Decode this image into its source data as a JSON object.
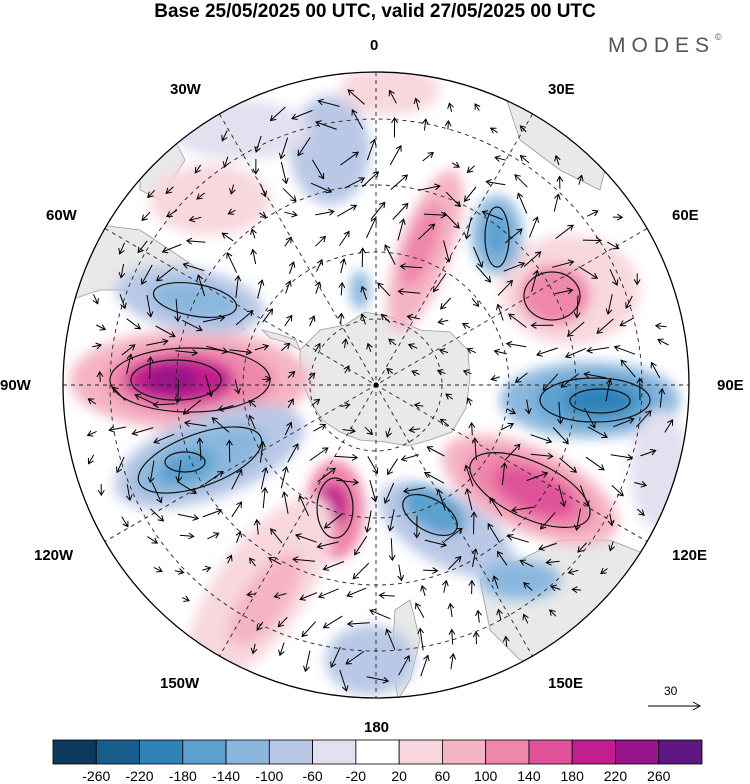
{
  "title": "Base 25/05/2025 00 UTC, valid 27/05/2025 00 UTC",
  "logo": "MODES",
  "logo_mark": "©",
  "longitude_labels": {
    "top": "0",
    "ne30": "30E",
    "nw30": "30W",
    "ne60": "60E",
    "nw60": "60W",
    "east": "90E",
    "west": "90W",
    "se120": "120E",
    "sw120": "120W",
    "se150": "150E",
    "sw150": "150W",
    "bottom": "180"
  },
  "reference_vector": {
    "value": "30"
  },
  "colorbar": {
    "colors": [
      "#0d3a5c",
      "#175e8c",
      "#2f82b8",
      "#5aa1cf",
      "#8bb7de",
      "#b9c8e6",
      "#e4e0f0",
      "#ffffff",
      "#f8d7de",
      "#f5b4c4",
      "#ef86ab",
      "#e0529a",
      "#c21e8f",
      "#96138a",
      "#5e1681"
    ],
    "ticks": [
      "-260",
      "-220",
      "-180",
      "-140",
      "-100",
      "-60",
      "-20",
      "20",
      "60",
      "100",
      "140",
      "180",
      "220",
      "260"
    ]
  },
  "map_features": {
    "projection": "south polar stereographic",
    "anomalies": [
      {
        "sign": "positive",
        "location": "90W"
      },
      {
        "sign": "positive",
        "location": "100E-130E"
      },
      {
        "sign": "positive",
        "location": "60E"
      },
      {
        "sign": "positive",
        "location": "15E"
      },
      {
        "sign": "positive",
        "location": "160W"
      },
      {
        "sign": "positive",
        "location": "140W-180"
      },
      {
        "sign": "negative",
        "location": "90E"
      },
      {
        "sign": "negative",
        "location": "60W-75W"
      },
      {
        "sign": "negative",
        "location": "110W"
      },
      {
        "sign": "negative",
        "location": "150E-160E"
      },
      {
        "sign": "negative",
        "location": "35E"
      },
      {
        "sign": "negative",
        "location": "180"
      }
    ]
  }
}
